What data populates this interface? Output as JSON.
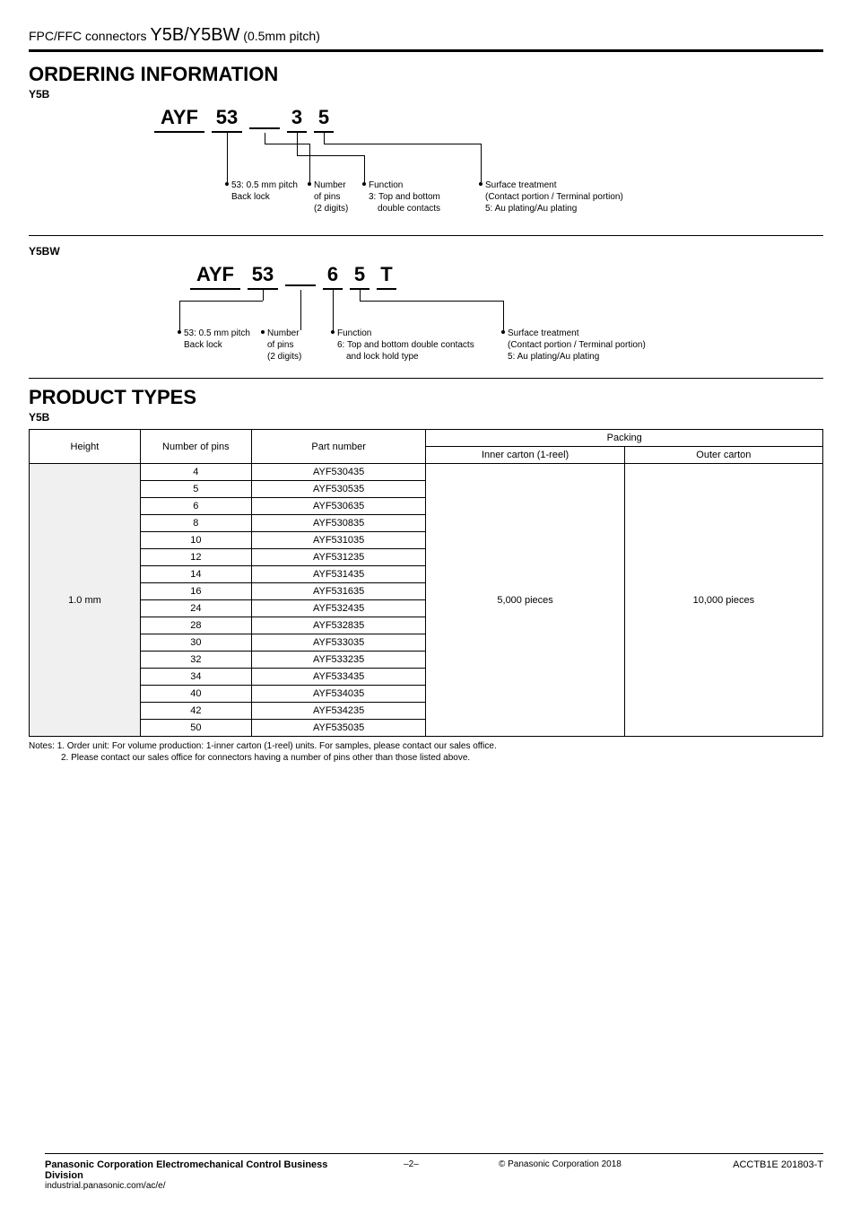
{
  "header": {
    "prefix": "FPC/FFC connectors ",
    "series": "Y5B/Y5BW",
    "suffix": " (0.5mm pitch)"
  },
  "ordering": {
    "title": "ORDERING INFORMATION",
    "y5b": {
      "label": "Y5B",
      "parts": {
        "p1": "AYF",
        "p2": "53",
        "p3": "3",
        "p4": "5"
      },
      "callouts": {
        "c1a": "53: 0.5 mm pitch",
        "c1b": "Back lock",
        "c2a": "Number",
        "c2b": "of pins",
        "c2c": "(2 digits)",
        "c3a": "Function",
        "c3b": "3: Top and bottom",
        "c3c": "double contacts",
        "c4a": "Surface treatment",
        "c4b": "(Contact portion / Terminal portion)",
        "c4c": "5: Au plating/Au plating"
      }
    },
    "y5bw": {
      "label": "Y5BW",
      "parts": {
        "p1": "AYF",
        "p2": "53",
        "p3": "6",
        "p4": "5",
        "p5": "T"
      },
      "callouts": {
        "c1a": "53: 0.5 mm pitch",
        "c1b": "Back lock",
        "c2a": "Number",
        "c2b": "of pins",
        "c2c": "(2 digits)",
        "c3a": "Function",
        "c3b": "6: Top and bottom double contacts",
        "c3c": "and lock hold type",
        "c4a": "Surface treatment",
        "c4b": "(Contact portion / Terminal portion)",
        "c4c": "5: Au plating/Au plating"
      }
    }
  },
  "product": {
    "title": "PRODUCT TYPES",
    "label": "Y5B",
    "headers": {
      "height": "Height",
      "pins": "Number of pins",
      "partno": "Part number",
      "packing": "Packing",
      "inner": "Inner carton (1-reel)",
      "outer": "Outer carton"
    },
    "height": "1.0 mm",
    "inner": "5,000 pieces",
    "outer": "10,000 pieces",
    "rows": [
      {
        "pins": "4",
        "pn": "AYF530435"
      },
      {
        "pins": "5",
        "pn": "AYF530535"
      },
      {
        "pins": "6",
        "pn": "AYF530635"
      },
      {
        "pins": "8",
        "pn": "AYF530835"
      },
      {
        "pins": "10",
        "pn": "AYF531035"
      },
      {
        "pins": "12",
        "pn": "AYF531235"
      },
      {
        "pins": "14",
        "pn": "AYF531435"
      },
      {
        "pins": "16",
        "pn": "AYF531635"
      },
      {
        "pins": "24",
        "pn": "AYF532435"
      },
      {
        "pins": "28",
        "pn": "AYF532835"
      },
      {
        "pins": "30",
        "pn": "AYF533035"
      },
      {
        "pins": "32",
        "pn": "AYF533235"
      },
      {
        "pins": "34",
        "pn": "AYF533435"
      },
      {
        "pins": "40",
        "pn": "AYF534035"
      },
      {
        "pins": "42",
        "pn": "AYF534235"
      },
      {
        "pins": "50",
        "pn": "AYF535035"
      }
    ],
    "notes_label": "Notes:",
    "note1": "1. Order unit: For volume production: 1-inner carton (1-reel) units. For samples, please contact our sales office.",
    "note2": "2. Please contact our sales office for connectors having a number of pins other than those listed above."
  },
  "footer": {
    "division": "Panasonic Corporation Electromechanical Control Business Division",
    "url": "industrial.panasonic.com/ac/e/",
    "page": "–2–",
    "copyright": "© Panasonic Corporation 2018",
    "code": "ACCTB1E 201803-T"
  }
}
